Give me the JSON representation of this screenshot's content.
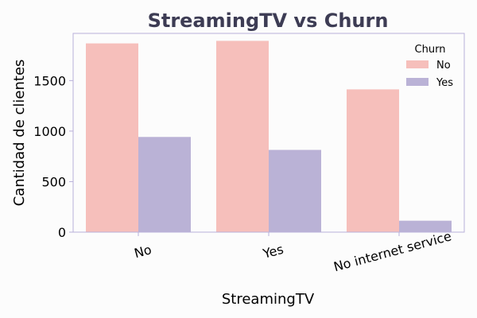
{
  "chart_data": {
    "type": "bar",
    "title": "StreamingTV vs Churn",
    "xlabel": "StreamingTV",
    "ylabel": "Cantidad de clientes",
    "categories": [
      "No",
      "Yes",
      "No internet service"
    ],
    "series": [
      {
        "name": "No",
        "values": [
          1868,
          1893,
          1413
        ]
      },
      {
        "name": "Yes",
        "values": [
          942,
          814,
          113
        ]
      }
    ],
    "ylim": [
      0,
      1967
    ],
    "yticks": [
      0,
      500,
      1000,
      1500
    ],
    "grid": false,
    "legend": {
      "title": "Churn",
      "placement": "top-right"
    },
    "colors": {
      "No": "#f6bfbb",
      "Yes": "#bab2d6",
      "frame": "#b9b0da",
      "title": "#3d3c54"
    }
  }
}
